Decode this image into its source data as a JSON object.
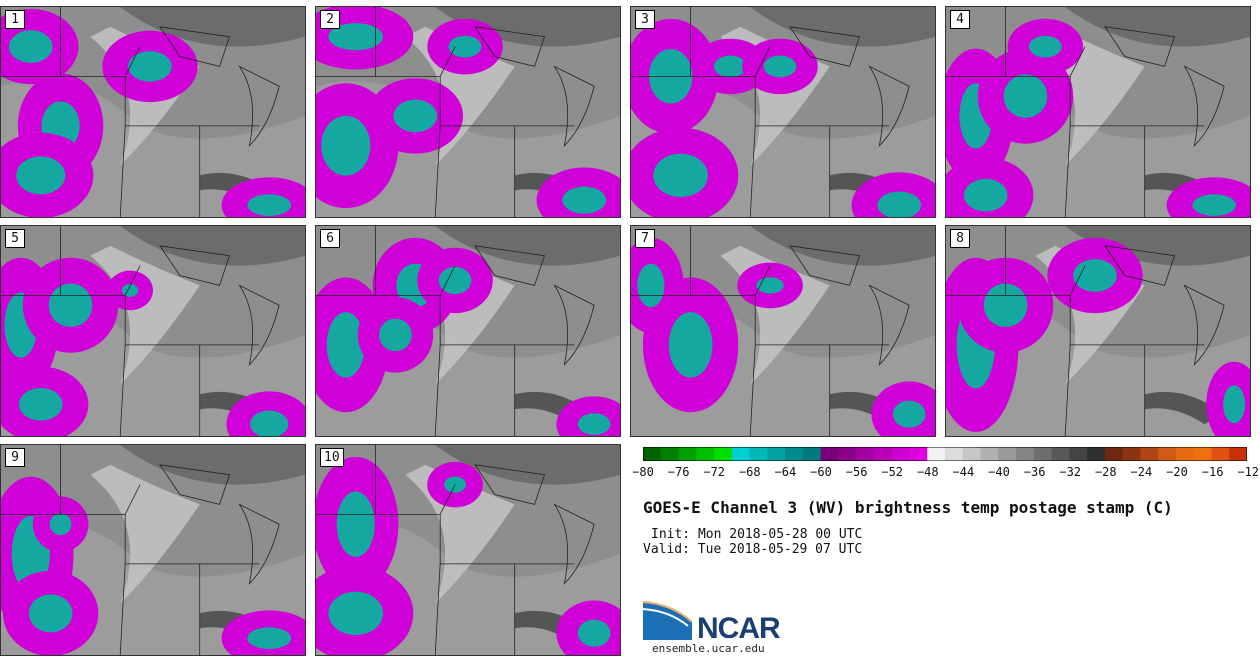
{
  "panels": [
    {
      "label": "1"
    },
    {
      "label": "2"
    },
    {
      "label": "3"
    },
    {
      "label": "4"
    },
    {
      "label": "5"
    },
    {
      "label": "6"
    },
    {
      "label": "7"
    },
    {
      "label": "8"
    },
    {
      "label": "9"
    },
    {
      "label": "10"
    }
  ],
  "colorbar": {
    "ticks": [
      "−80",
      "−76",
      "−72",
      "−68",
      "−64",
      "−60",
      "−56",
      "−52",
      "−48",
      "−44",
      "−40",
      "−36",
      "−32",
      "−28",
      "−24",
      "−20",
      "−16",
      "−12"
    ],
    "colors": [
      "#006400",
      "#008000",
      "#00a000",
      "#00c000",
      "#00e000",
      "#00cfcf",
      "#00b8b8",
      "#00a2a2",
      "#008c8c",
      "#007a7a",
      "#7a007a",
      "#8c008c",
      "#a200a2",
      "#b800b8",
      "#cf00cf",
      "#e000e0",
      "#f2f2f2",
      "#dcdcdc",
      "#c6c6c6",
      "#b0b0b0",
      "#9a9a9a",
      "#848484",
      "#6e6e6e",
      "#585858",
      "#444444",
      "#303030",
      "#6e2a10",
      "#8c3412",
      "#b04414",
      "#d05a16",
      "#e86a10",
      "#f07010",
      "#e05010",
      "#c83008"
    ]
  },
  "title": "GOES-E Channel 3 (WV) brightness temp postage stamp (C)",
  "init": "Init: Mon 2018-05-28 00 UTC",
  "valid": "Valid: Tue 2018-05-29 07 UTC",
  "logo": {
    "name": "NCAR",
    "site": "ensemble.ucar.edu"
  }
}
